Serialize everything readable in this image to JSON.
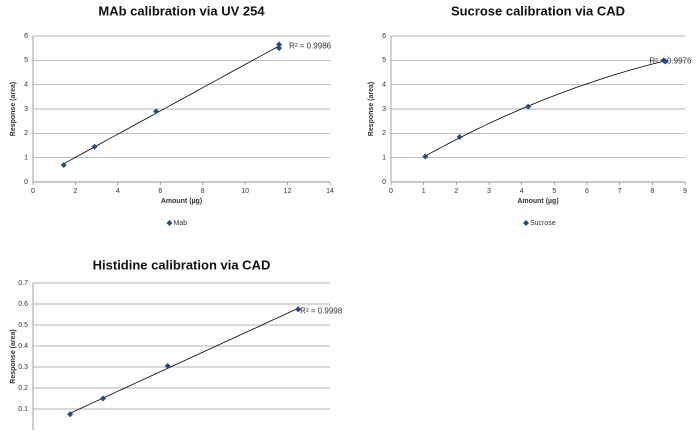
{
  "chart_data": [
    {
      "type": "scatter",
      "title": "MAb calibration via UV 254",
      "x_label": "Amount (µg)",
      "y_label": "Response (area)",
      "annotation": "R² = 0.9986",
      "trendline": "linear",
      "grid": true,
      "xlim": [
        0,
        14
      ],
      "xticks": [
        0,
        2,
        4,
        6,
        8,
        10,
        12,
        14
      ],
      "ylim": [
        0,
        6
      ],
      "yticks": [
        0,
        1,
        2,
        3,
        4,
        5,
        6
      ],
      "series": [
        {
          "name": "Mab",
          "color": "#1f4e8c",
          "x": [
            1.45,
            2.9,
            5.8,
            11.6,
            11.6
          ],
          "values": [
            0.7,
            1.45,
            2.9,
            5.5,
            5.65
          ]
        }
      ]
    },
    {
      "type": "scatter",
      "title": "Sucrose calibration via CAD",
      "x_label": "Amount (µg)",
      "y_label": "Response (area)",
      "annotation": "R² = 0.9976",
      "trendline": "poly2",
      "grid": true,
      "xlim": [
        0,
        9
      ],
      "xticks": [
        0,
        1,
        2,
        3,
        4,
        5,
        6,
        7,
        8,
        9
      ],
      "ylim": [
        0,
        6
      ],
      "yticks": [
        0,
        1,
        2,
        3,
        4,
        5,
        6
      ],
      "series": [
        {
          "name": "Sucrose",
          "color": "#1f4e8c",
          "x": [
            1.05,
            2.1,
            4.2,
            8.4,
            8.35
          ],
          "values": [
            1.05,
            1.85,
            3.1,
            4.95,
            5.0
          ]
        }
      ]
    },
    {
      "type": "scatter",
      "title": "Histidine calibration via CAD",
      "y_label": "Response (area)",
      "annotation": "R² = 0.9998",
      "trendline": "linear",
      "grid": true,
      "xlim": [
        0,
        14
      ],
      "ylim": [
        0,
        0.7
      ],
      "yticks": [
        0.1,
        0.2,
        0.3,
        0.4,
        0.5,
        0.6,
        0.7
      ],
      "series": [
        {
          "color": "#1f4e8c",
          "x": [
            1.75,
            3.3,
            6.35,
            12.5
          ],
          "values": [
            0.075,
            0.15,
            0.305,
            0.575
          ]
        }
      ]
    }
  ]
}
